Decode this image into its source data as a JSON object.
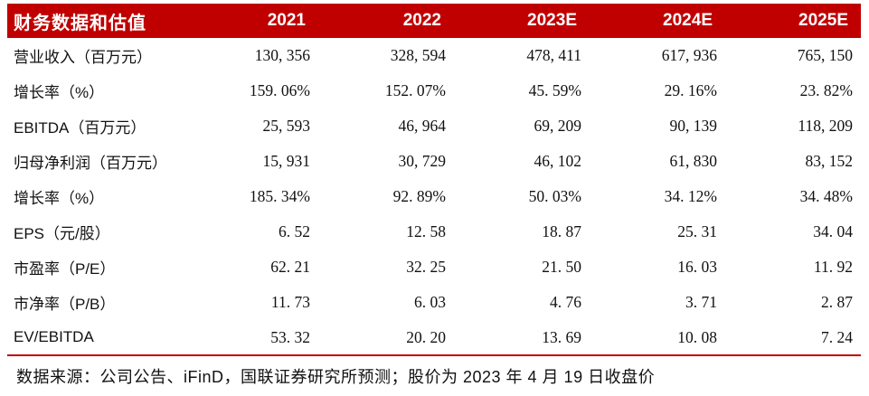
{
  "colors": {
    "accent": "#c00000",
    "header_text": "#ffffff",
    "body_text": "#111111",
    "background": "#ffffff"
  },
  "table": {
    "title": "财务数据和估值",
    "columns": [
      "2021",
      "2022",
      "2023E",
      "2024E",
      "2025E"
    ],
    "rows": [
      {
        "label": "营业收入（百万元）",
        "values": [
          "130, 356",
          "328, 594",
          "478, 411",
          "617, 936",
          "765, 150"
        ]
      },
      {
        "label": "增长率（%）",
        "values": [
          "159. 06%",
          "152. 07%",
          "45. 59%",
          "29. 16%",
          "23. 82%"
        ]
      },
      {
        "label": "EBITDA（百万元）",
        "values": [
          "25, 593",
          "46, 964",
          "69, 209",
          "90, 139",
          "118, 209"
        ]
      },
      {
        "label": "归母净利润（百万元）",
        "values": [
          "15, 931",
          "30, 729",
          "46, 102",
          "61, 830",
          "83, 152"
        ]
      },
      {
        "label": "增长率（%）",
        "values": [
          "185. 34%",
          "92. 89%",
          "50. 03%",
          "34. 12%",
          "34. 48%"
        ]
      },
      {
        "label": "EPS（元/股）",
        "values": [
          "6. 52",
          "12. 58",
          "18. 87",
          "25. 31",
          "34. 04"
        ]
      },
      {
        "label": "市盈率（P/E）",
        "values": [
          "62. 21",
          "32. 25",
          "21. 50",
          "16. 03",
          "11. 92"
        ]
      },
      {
        "label": "市净率（P/B）",
        "values": [
          "11. 73",
          "6. 03",
          "4. 76",
          "3. 71",
          "2. 87"
        ]
      },
      {
        "label": "EV/EBITDA",
        "values": [
          "53. 32",
          "20. 20",
          "13. 69",
          "10. 08",
          "7. 24"
        ]
      }
    ]
  },
  "footer": {
    "source_note": "数据来源：公司公告、iFinD，国联证券研究所预测；股价为 2023 年 4 月 19 日收盘价"
  }
}
